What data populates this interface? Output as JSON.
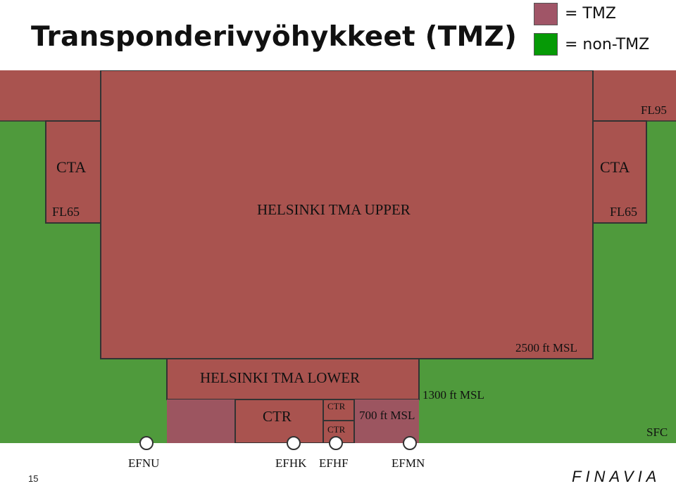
{
  "title": "Transponderivyöhykkeet (TMZ)",
  "legend": {
    "tmz": {
      "label": "= TMZ",
      "color": "#a05567"
    },
    "non_tmz": {
      "label": "= non-TMZ",
      "color": "#069a06"
    }
  },
  "colors": {
    "tmz_fill": "#a9534f",
    "tmz_lower_fill": "#9c5560",
    "non_tmz_fill": "#4f9a3c",
    "outline": "#333333"
  },
  "airspace": {
    "cta_left": {
      "name": "CTA",
      "lower_limit": "FL65"
    },
    "cta_right": {
      "name": "CTA",
      "lower_limit": "FL65"
    },
    "upper_limit": "FL95",
    "tma_upper": {
      "name": "HELSINKI TMA UPPER",
      "lower_limit": "2500 ft MSL"
    },
    "tma_lower": {
      "name": "HELSINKI TMA LOWER",
      "lower_limit": "1300 ft MSL"
    },
    "ctr_main": "CTR",
    "ctr_small_top": "CTR",
    "ctr_small_bottom": "CTR",
    "tmz_700": "700 ft MSL",
    "surface": "SFC"
  },
  "airfields": [
    "EFNU",
    "EFHK",
    "EFHF",
    "EFMN"
  ],
  "footer": {
    "page_number": "15",
    "logo": "FINAVIA"
  }
}
